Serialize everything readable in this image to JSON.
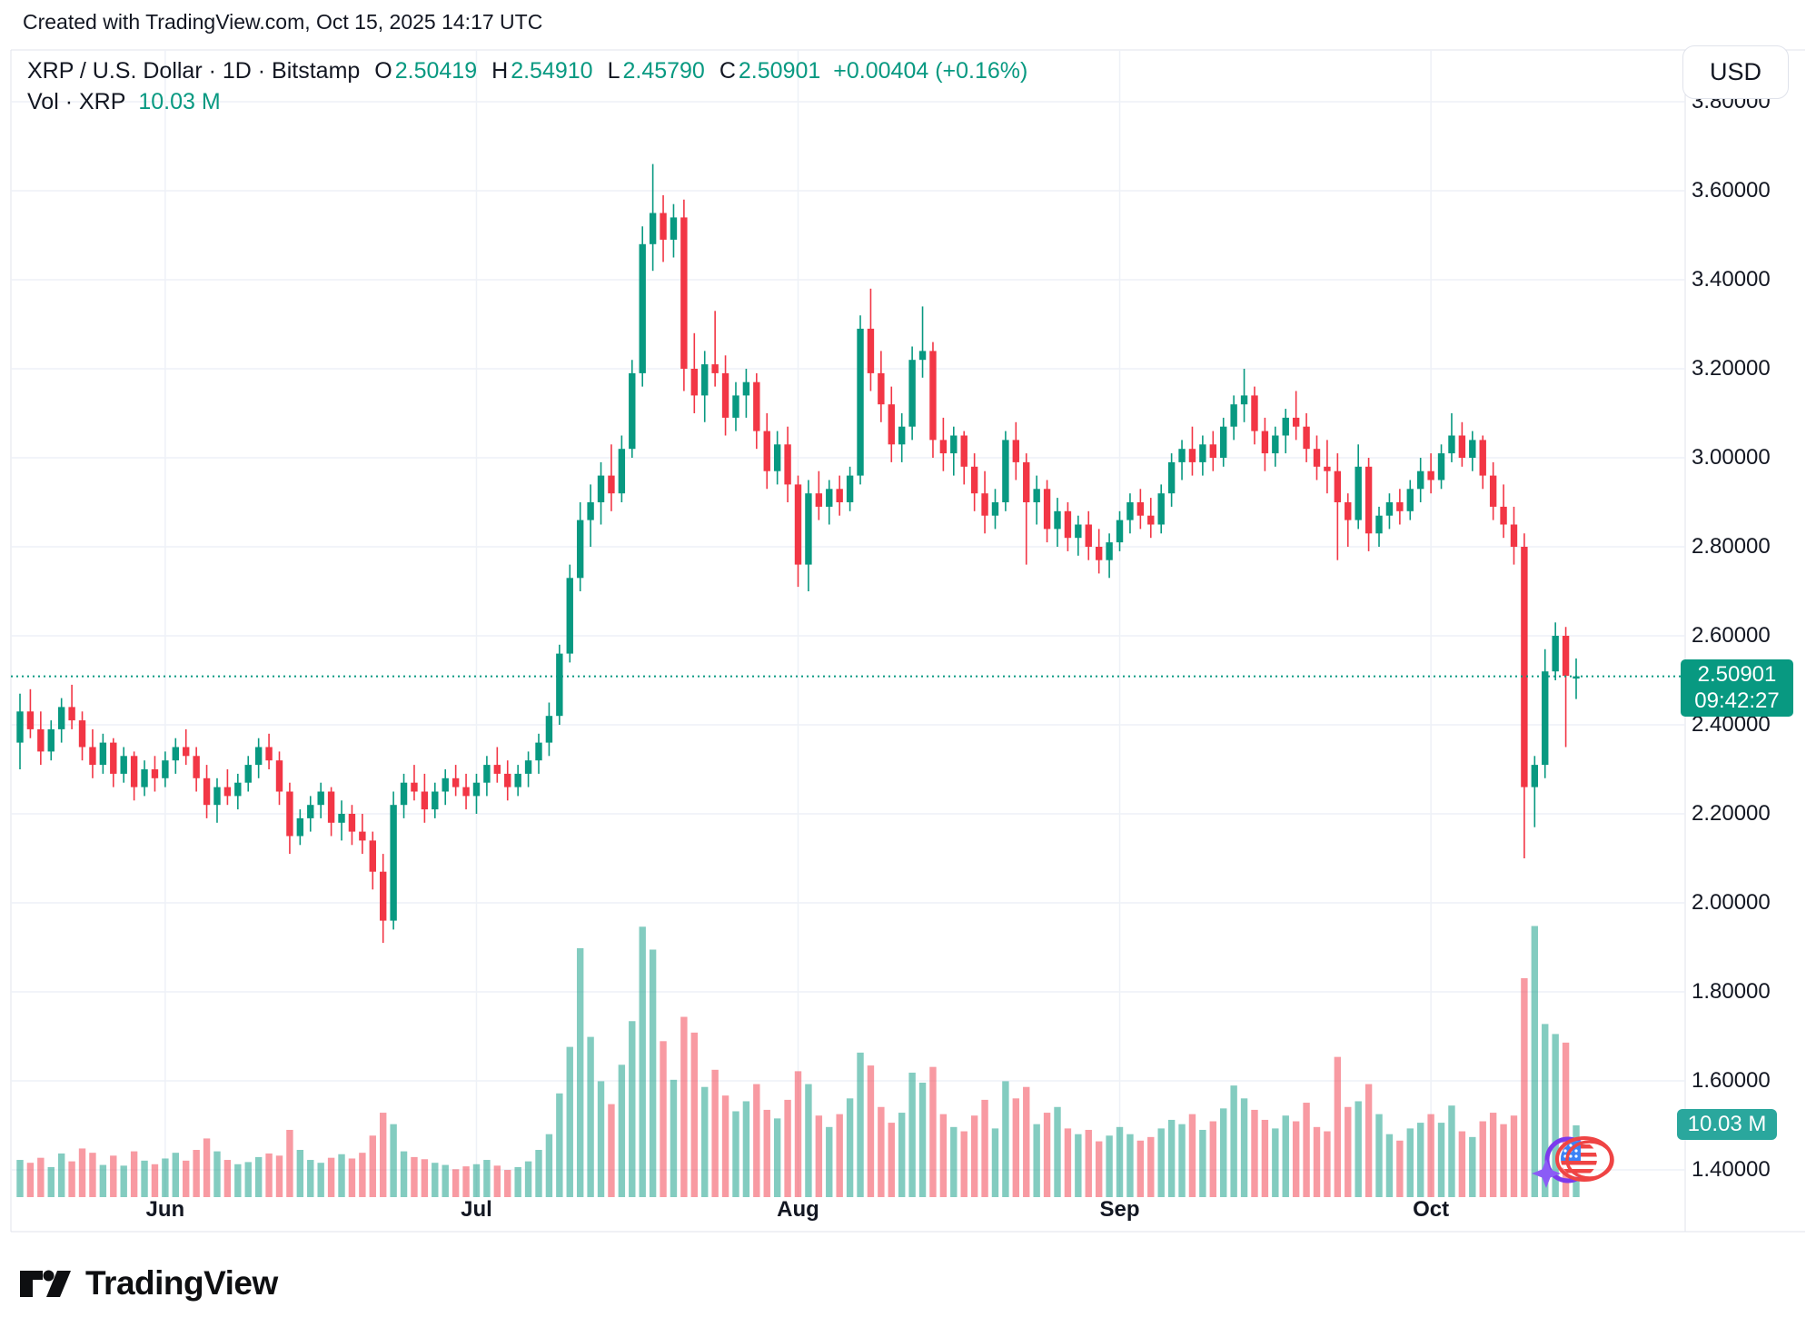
{
  "created_line": "Created with TradingView.com, Oct 15, 2025 14:17 UTC",
  "header": {
    "symbol_line": {
      "text": "XRP / U.S. Dollar · 1D · Bitstamp",
      "ohlc": [
        {
          "label": "O",
          "value": "2.50419"
        },
        {
          "label": "H",
          "value": "2.54910"
        },
        {
          "label": "L",
          "value": "2.45790"
        },
        {
          "label": "C",
          "value": "2.50901"
        }
      ],
      "change": "+0.00404 (+0.16%)"
    },
    "volume_line": {
      "label": "Vol · XRP",
      "value": "10.03 M"
    }
  },
  "right_axis": {
    "currency_button": "USD",
    "price_labels": [
      "3.80000",
      "3.60000",
      "3.40000",
      "3.20000",
      "3.00000",
      "2.80000",
      "2.60000",
      "2.40000",
      "2.20000",
      "2.00000",
      "1.80000",
      "1.60000",
      "1.40000"
    ],
    "price_badge": {
      "price": "2.50901",
      "countdown": "09:42:27"
    },
    "volume_badge": "10.03 M"
  },
  "x_axis": {
    "months": [
      {
        "label": "Jun",
        "index": 14
      },
      {
        "label": "Jul",
        "index": 44
      },
      {
        "label": "Aug",
        "index": 75
      },
      {
        "label": "Sep",
        "index": 106
      },
      {
        "label": "Oct",
        "index": 136
      }
    ]
  },
  "footer": {
    "brand": "TradingView"
  },
  "colors": {
    "up": "#089981",
    "down": "#F23645",
    "volume_up": "rgba(8,153,129,0.5)",
    "volume_down": "rgba(242,54,69,0.5)",
    "accent_teal": "#089981",
    "text": "#131722",
    "grid": "#eef1f7",
    "border": "#e0e3eb",
    "badge_price_bg": "#089981",
    "badge_volume_bg": "#2aa79d",
    "last_price_line": "#089981"
  },
  "chart_data": {
    "type": "candlestick",
    "title": "XRP / U.S. Dollar",
    "interval": "1D",
    "exchange": "Bitstamp",
    "legend_position": "top-left",
    "grid": true,
    "price_axis": {
      "min": 1.4,
      "max": 3.8,
      "tick_step": 0.2,
      "side": "right"
    },
    "volume_axis": {
      "last_volume_m": 10.03,
      "max_m": 38
    },
    "last_price": 2.50901,
    "last_ohlc": {
      "o": 2.50419,
      "h": 2.5491,
      "l": 2.4579,
      "c": 2.50901,
      "change": 0.00404,
      "change_pct": 0.16
    },
    "start_date": "2025-05-18",
    "end_date": "2025-10-15",
    "candles": [
      [
        2.36,
        2.47,
        2.3,
        2.43
      ],
      [
        2.43,
        2.48,
        2.37,
        2.39
      ],
      [
        2.39,
        2.43,
        2.31,
        2.34
      ],
      [
        2.34,
        2.41,
        2.32,
        2.39
      ],
      [
        2.39,
        2.46,
        2.36,
        2.44
      ],
      [
        2.44,
        2.49,
        2.39,
        2.41
      ],
      [
        2.41,
        2.43,
        2.32,
        2.35
      ],
      [
        2.35,
        2.39,
        2.28,
        2.31
      ],
      [
        2.31,
        2.38,
        2.29,
        2.36
      ],
      [
        2.36,
        2.37,
        2.26,
        2.29
      ],
      [
        2.29,
        2.35,
        2.27,
        2.33
      ],
      [
        2.33,
        2.34,
        2.23,
        2.26
      ],
      [
        2.26,
        2.32,
        2.24,
        2.3
      ],
      [
        2.3,
        2.33,
        2.25,
        2.28
      ],
      [
        2.28,
        2.34,
        2.26,
        2.32
      ],
      [
        2.32,
        2.37,
        2.29,
        2.35
      ],
      [
        2.35,
        2.39,
        2.31,
        2.33
      ],
      [
        2.33,
        2.35,
        2.25,
        2.28
      ],
      [
        2.28,
        2.31,
        2.19,
        2.22
      ],
      [
        2.22,
        2.28,
        2.18,
        2.26
      ],
      [
        2.26,
        2.3,
        2.22,
        2.24
      ],
      [
        2.24,
        2.29,
        2.21,
        2.27
      ],
      [
        2.27,
        2.33,
        2.25,
        2.31
      ],
      [
        2.31,
        2.37,
        2.28,
        2.35
      ],
      [
        2.35,
        2.38,
        2.3,
        2.32
      ],
      [
        2.32,
        2.34,
        2.22,
        2.25
      ],
      [
        2.25,
        2.27,
        2.11,
        2.15
      ],
      [
        2.15,
        2.21,
        2.13,
        2.19
      ],
      [
        2.19,
        2.24,
        2.16,
        2.22
      ],
      [
        2.22,
        2.27,
        2.19,
        2.25
      ],
      [
        2.25,
        2.26,
        2.15,
        2.18
      ],
      [
        2.18,
        2.23,
        2.14,
        2.2
      ],
      [
        2.2,
        2.22,
        2.13,
        2.16
      ],
      [
        2.16,
        2.2,
        2.11,
        2.14
      ],
      [
        2.14,
        2.16,
        2.03,
        2.07
      ],
      [
        2.07,
        2.11,
        1.91,
        1.96
      ],
      [
        1.96,
        2.25,
        1.94,
        2.22
      ],
      [
        2.22,
        2.29,
        2.19,
        2.27
      ],
      [
        2.27,
        2.31,
        2.23,
        2.25
      ],
      [
        2.25,
        2.29,
        2.18,
        2.21
      ],
      [
        2.21,
        2.27,
        2.19,
        2.25
      ],
      [
        2.25,
        2.3,
        2.22,
        2.28
      ],
      [
        2.28,
        2.31,
        2.24,
        2.26
      ],
      [
        2.26,
        2.29,
        2.21,
        2.24
      ],
      [
        2.24,
        2.29,
        2.2,
        2.27
      ],
      [
        2.27,
        2.33,
        2.24,
        2.31
      ],
      [
        2.31,
        2.35,
        2.27,
        2.29
      ],
      [
        2.29,
        2.32,
        2.23,
        2.26
      ],
      [
        2.26,
        2.31,
        2.24,
        2.29
      ],
      [
        2.29,
        2.34,
        2.26,
        2.32
      ],
      [
        2.32,
        2.38,
        2.29,
        2.36
      ],
      [
        2.36,
        2.45,
        2.33,
        2.42
      ],
      [
        2.42,
        2.58,
        2.4,
        2.56
      ],
      [
        2.56,
        2.76,
        2.54,
        2.73
      ],
      [
        2.73,
        2.9,
        2.7,
        2.86
      ],
      [
        2.86,
        2.94,
        2.8,
        2.9
      ],
      [
        2.9,
        2.99,
        2.85,
        2.96
      ],
      [
        2.96,
        3.03,
        2.88,
        2.92
      ],
      [
        2.92,
        3.05,
        2.9,
        3.02
      ],
      [
        3.02,
        3.22,
        3.0,
        3.19
      ],
      [
        3.19,
        3.52,
        3.16,
        3.48
      ],
      [
        3.48,
        3.66,
        3.42,
        3.55
      ],
      [
        3.55,
        3.59,
        3.44,
        3.49
      ],
      [
        3.49,
        3.57,
        3.45,
        3.54
      ],
      [
        3.54,
        3.58,
        3.15,
        3.2
      ],
      [
        3.2,
        3.28,
        3.1,
        3.14
      ],
      [
        3.14,
        3.24,
        3.08,
        3.21
      ],
      [
        3.21,
        3.33,
        3.16,
        3.19
      ],
      [
        3.19,
        3.23,
        3.05,
        3.09
      ],
      [
        3.09,
        3.17,
        3.06,
        3.14
      ],
      [
        3.14,
        3.2,
        3.09,
        3.17
      ],
      [
        3.17,
        3.19,
        3.02,
        3.06
      ],
      [
        3.06,
        3.1,
        2.93,
        2.97
      ],
      [
        2.97,
        3.06,
        2.94,
        3.03
      ],
      [
        3.03,
        3.07,
        2.9,
        2.94
      ],
      [
        2.94,
        2.96,
        2.71,
        2.76
      ],
      [
        2.76,
        2.95,
        2.7,
        2.92
      ],
      [
        2.92,
        2.97,
        2.86,
        2.89
      ],
      [
        2.89,
        2.95,
        2.85,
        2.93
      ],
      [
        2.93,
        2.96,
        2.87,
        2.9
      ],
      [
        2.9,
        2.98,
        2.88,
        2.96
      ],
      [
        2.96,
        3.32,
        2.94,
        3.29
      ],
      [
        3.29,
        3.38,
        3.15,
        3.19
      ],
      [
        3.19,
        3.24,
        3.08,
        3.12
      ],
      [
        3.12,
        3.16,
        2.99,
        3.03
      ],
      [
        3.03,
        3.1,
        2.99,
        3.07
      ],
      [
        3.07,
        3.25,
        3.04,
        3.22
      ],
      [
        3.22,
        3.34,
        3.18,
        3.24
      ],
      [
        3.24,
        3.26,
        3.0,
        3.04
      ],
      [
        3.04,
        3.09,
        2.97,
        3.01
      ],
      [
        3.01,
        3.07,
        2.96,
        3.05
      ],
      [
        3.05,
        3.06,
        2.94,
        2.98
      ],
      [
        2.98,
        3.01,
        2.88,
        2.92
      ],
      [
        2.92,
        2.97,
        2.83,
        2.87
      ],
      [
        2.87,
        2.93,
        2.84,
        2.9
      ],
      [
        2.9,
        3.06,
        2.88,
        3.04
      ],
      [
        3.04,
        3.08,
        2.95,
        2.99
      ],
      [
        2.99,
        3.01,
        2.76,
        2.9
      ],
      [
        2.9,
        2.96,
        2.85,
        2.93
      ],
      [
        2.93,
        2.95,
        2.81,
        2.84
      ],
      [
        2.84,
        2.91,
        2.8,
        2.88
      ],
      [
        2.88,
        2.9,
        2.79,
        2.82
      ],
      [
        2.82,
        2.87,
        2.78,
        2.85
      ],
      [
        2.85,
        2.88,
        2.77,
        2.8
      ],
      [
        2.8,
        2.84,
        2.74,
        2.77
      ],
      [
        2.77,
        2.83,
        2.73,
        2.81
      ],
      [
        2.81,
        2.88,
        2.79,
        2.86
      ],
      [
        2.86,
        2.92,
        2.83,
        2.9
      ],
      [
        2.9,
        2.93,
        2.84,
        2.87
      ],
      [
        2.87,
        2.91,
        2.82,
        2.85
      ],
      [
        2.85,
        2.94,
        2.83,
        2.92
      ],
      [
        2.92,
        3.01,
        2.89,
        2.99
      ],
      [
        2.99,
        3.04,
        2.95,
        3.02
      ],
      [
        3.02,
        3.07,
        2.96,
        2.99
      ],
      [
        2.99,
        3.05,
        2.96,
        3.03
      ],
      [
        3.03,
        3.06,
        2.97,
        3.0
      ],
      [
        3.0,
        3.09,
        2.98,
        3.07
      ],
      [
        3.07,
        3.14,
        3.04,
        3.12
      ],
      [
        3.12,
        3.2,
        3.08,
        3.14
      ],
      [
        3.14,
        3.16,
        3.03,
        3.06
      ],
      [
        3.06,
        3.09,
        2.97,
        3.01
      ],
      [
        3.01,
        3.07,
        2.98,
        3.05
      ],
      [
        3.05,
        3.11,
        3.01,
        3.09
      ],
      [
        3.09,
        3.15,
        3.04,
        3.07
      ],
      [
        3.07,
        3.1,
        2.99,
        3.02
      ],
      [
        3.02,
        3.05,
        2.95,
        2.98
      ],
      [
        2.98,
        3.04,
        2.92,
        2.97
      ],
      [
        2.97,
        3.01,
        2.77,
        2.9
      ],
      [
        2.9,
        2.92,
        2.8,
        2.86
      ],
      [
        2.86,
        3.03,
        2.84,
        2.98
      ],
      [
        2.98,
        3.0,
        2.79,
        2.83
      ],
      [
        2.83,
        2.89,
        2.8,
        2.87
      ],
      [
        2.87,
        2.92,
        2.84,
        2.9
      ],
      [
        2.9,
        2.93,
        2.85,
        2.88
      ],
      [
        2.88,
        2.95,
        2.86,
        2.93
      ],
      [
        2.93,
        3.0,
        2.9,
        2.97
      ],
      [
        2.97,
        3.01,
        2.92,
        2.95
      ],
      [
        2.95,
        3.03,
        2.93,
        3.01
      ],
      [
        3.01,
        3.1,
        2.99,
        3.05
      ],
      [
        3.05,
        3.08,
        2.98,
        3.0
      ],
      [
        3.0,
        3.06,
        2.97,
        3.04
      ],
      [
        3.04,
        3.05,
        2.93,
        2.96
      ],
      [
        2.96,
        2.99,
        2.86,
        2.89
      ],
      [
        2.89,
        2.94,
        2.82,
        2.85
      ],
      [
        2.85,
        2.89,
        2.76,
        2.8
      ],
      [
        2.8,
        2.83,
        2.1,
        2.26
      ],
      [
        2.26,
        2.33,
        2.17,
        2.31
      ],
      [
        2.31,
        2.57,
        2.28,
        2.52
      ],
      [
        2.52,
        2.63,
        2.5,
        2.6
      ],
      [
        2.6,
        2.62,
        2.35,
        2.51
      ],
      [
        2.50419,
        2.5491,
        2.4579,
        2.50901
      ]
    ],
    "volumes_m": [
      5.2,
      4.8,
      5.5,
      4.2,
      6.1,
      5.0,
      6.8,
      6.2,
      4.5,
      5.8,
      4.4,
      6.4,
      5.1,
      4.6,
      5.4,
      6.2,
      5.1,
      6.6,
      8.2,
      6.4,
      5.2,
      4.6,
      4.9,
      5.6,
      6.1,
      5.8,
      9.4,
      6.6,
      5.2,
      4.8,
      5.5,
      6.0,
      5.4,
      6.2,
      8.6,
      11.8,
      10.2,
      6.4,
      5.6,
      5.3,
      4.8,
      4.5,
      3.9,
      4.3,
      4.6,
      5.2,
      4.4,
      3.8,
      4.2,
      5.0,
      6.6,
      8.8,
      14.5,
      21.0,
      34.8,
      22.4,
      16.2,
      13.0,
      18.5,
      24.6,
      37.8,
      34.6,
      21.8,
      16.4,
      25.2,
      23.0,
      15.4,
      17.8,
      14.2,
      12.0,
      13.4,
      15.8,
      12.2,
      11.0,
      13.6,
      17.6,
      15.8,
      11.4,
      9.8,
      11.6,
      13.8,
      20.2,
      18.4,
      12.6,
      10.4,
      11.8,
      17.4,
      16.0,
      18.2,
      11.6,
      9.8,
      9.2,
      11.4,
      13.6,
      9.6,
      16.2,
      13.8,
      15.4,
      10.2,
      11.8,
      12.6,
      9.6,
      8.8,
      9.4,
      7.8,
      8.6,
      9.8,
      8.8,
      7.9,
      8.4,
      9.6,
      10.8,
      10.2,
      11.6,
      9.4,
      10.6,
      12.4,
      15.6,
      13.8,
      12.2,
      10.8,
      9.6,
      11.4,
      10.6,
      13.2,
      9.8,
      9.2,
      19.6,
      12.6,
      13.4,
      15.8,
      11.6,
      8.8,
      7.9,
      9.6,
      10.4,
      11.6,
      10.4,
      12.8,
      9.2,
      8.4,
      10.6,
      11.8,
      10.2,
      11.4,
      30.6,
      37.9,
      24.2,
      22.8,
      21.6,
      10.03
    ]
  }
}
